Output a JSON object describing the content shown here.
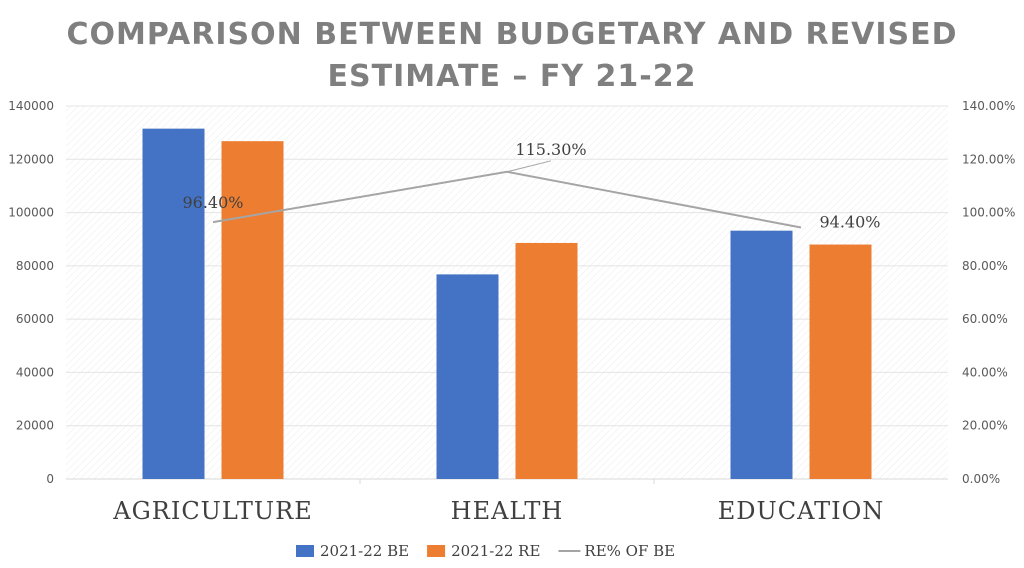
{
  "chart_data": {
    "type": "bar",
    "title_lines": [
      "COMPARISON BETWEEN BUDGETARY AND REVISED",
      "ESTIMATE – FY 21-22"
    ],
    "categories": [
      "AGRICULTURE",
      "HEALTH",
      "EDUCATION"
    ],
    "series": [
      {
        "name": "2021-22 BE",
        "type": "bar",
        "axis": "left",
        "color": "#4472C4",
        "values": [
          131500,
          76800,
          93200
        ]
      },
      {
        "name": "2021-22 RE",
        "type": "bar",
        "axis": "left",
        "color": "#ED7D31",
        "values": [
          126800,
          88600,
          88000
        ]
      },
      {
        "name": "RE% OF BE",
        "type": "line",
        "axis": "right",
        "color": "#A5A5A5",
        "values": [
          96.4,
          115.3,
          94.4
        ],
        "labels": [
          "96.40%",
          "115.30%",
          "94.40%"
        ]
      }
    ],
    "y_left": {
      "min": 0,
      "max": 140000,
      "step": 20000,
      "tick_labels": [
        "0",
        "20000",
        "40000",
        "60000",
        "80000",
        "100000",
        "120000",
        "140000"
      ]
    },
    "y_right": {
      "min": 0,
      "max": 140,
      "step": 20,
      "tick_labels": [
        "0.00%",
        "20.00%",
        "40.00%",
        "60.00%",
        "80.00%",
        "100.00%",
        "120.00%",
        "140.00%"
      ]
    },
    "legend_position": "bottom",
    "grid": true
  }
}
